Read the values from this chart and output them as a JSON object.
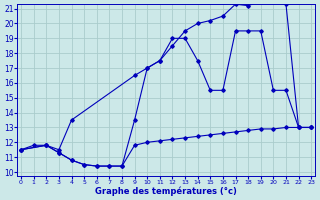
{
  "bg_color": "#cce8e8",
  "grid_color": "#aacccc",
  "line_color": "#0000bb",
  "title": "Graphe des températures (°c)",
  "xlim": [
    0,
    23
  ],
  "ylim": [
    10,
    21
  ],
  "xticks": [
    0,
    1,
    2,
    3,
    4,
    5,
    6,
    7,
    8,
    9,
    10,
    11,
    12,
    13,
    14,
    15,
    16,
    17,
    18,
    19,
    20,
    21,
    22,
    23
  ],
  "yticks": [
    10,
    11,
    12,
    13,
    14,
    15,
    16,
    17,
    18,
    19,
    20,
    21
  ],
  "series_flat_x": [
    0,
    1,
    2,
    3,
    4,
    5,
    6,
    7,
    8,
    9,
    10,
    11,
    12,
    13,
    14,
    15,
    16,
    17,
    18,
    19,
    20,
    21,
    22,
    23
  ],
  "series_flat_y": [
    11.5,
    11.8,
    11.8,
    11.3,
    10.8,
    10.5,
    10.4,
    10.4,
    10.4,
    11.8,
    12.0,
    12.1,
    12.2,
    12.3,
    12.4,
    12.5,
    12.6,
    12.7,
    12.8,
    12.9,
    12.9,
    13.0,
    13.0,
    13.0
  ],
  "series_mid_x": [
    0,
    2,
    3,
    4,
    5,
    6,
    7,
    8,
    9,
    10,
    11,
    12,
    13,
    14,
    15,
    16,
    17,
    18,
    19,
    20,
    21,
    22,
    23
  ],
  "series_mid_y": [
    11.5,
    11.8,
    11.3,
    10.8,
    10.5,
    10.4,
    10.4,
    10.4,
    13.5,
    17.0,
    17.5,
    19.0,
    19.0,
    17.5,
    15.5,
    15.5,
    19.5,
    19.5,
    19.5,
    15.5,
    15.5,
    13.0,
    13.0
  ],
  "series_top_x": [
    0,
    2,
    3,
    4,
    9,
    10,
    11,
    12,
    13,
    14,
    15,
    16,
    17,
    18,
    19,
    20,
    21,
    22,
    23
  ],
  "series_top_y": [
    11.5,
    11.8,
    11.5,
    13.5,
    16.5,
    17.0,
    17.5,
    18.5,
    19.5,
    20.0,
    20.2,
    20.5,
    21.3,
    21.2,
    21.5,
    21.5,
    21.3,
    13.0,
    13.0
  ]
}
